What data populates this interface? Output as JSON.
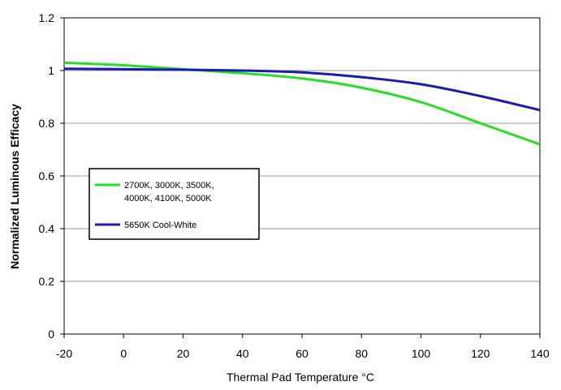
{
  "chart_data": {
    "type": "line",
    "title": "",
    "xlabel": "Thermal Pad Temperature °C",
    "ylabel": "Normalized Luminous Efficacy",
    "xlim": [
      -20,
      140
    ],
    "ylim": [
      0,
      1.2
    ],
    "x_ticks": [
      -20,
      0,
      20,
      40,
      60,
      80,
      100,
      120,
      140
    ],
    "y_ticks": [
      0,
      0.2,
      0.4,
      0.6,
      0.8,
      1,
      1.2
    ],
    "grid": "horizontal",
    "legend": "center-left",
    "series": [
      {
        "name": "2700K, 3000K, 3500K, 4000K, 4100K, 5000K",
        "legend_lines": [
          "2700K, 3000K, 3500K,",
          "4000K, 4100K, 5000K"
        ],
        "color": "#22e022",
        "x": [
          -20,
          0,
          20,
          40,
          60,
          80,
          100,
          120,
          140
        ],
        "y": [
          1.03,
          1.02,
          1.005,
          0.99,
          0.97,
          0.935,
          0.88,
          0.8,
          0.72
        ]
      },
      {
        "name": "5650K Cool-White",
        "legend_lines": [
          "5650K Cool-White"
        ],
        "color": "#1a1ab4",
        "x": [
          -20,
          0,
          20,
          40,
          60,
          80,
          100,
          120,
          140
        ],
        "y": [
          1.007,
          1.005,
          1.003,
          1.0,
          0.993,
          0.975,
          0.948,
          0.903,
          0.85
        ]
      }
    ]
  }
}
